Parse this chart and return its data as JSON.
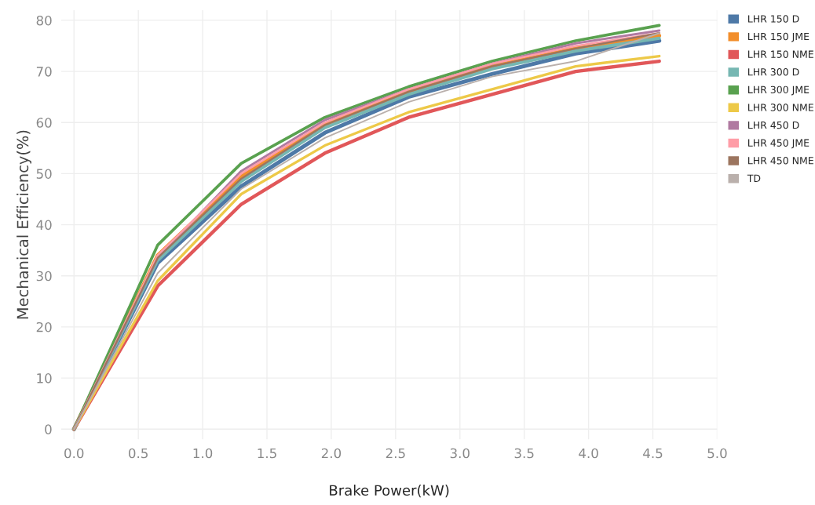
{
  "chart_data": {
    "type": "line",
    "xlabel": "Brake Power(kW)",
    "ylabel": "Mechanical Efficiency(%)",
    "x": [
      0,
      0.65,
      1.3,
      1.95,
      2.6,
      3.25,
      3.9,
      4.55
    ],
    "series": [
      {
        "name": "LHR 150 D",
        "color": "#4e79a7",
        "values": [
          0,
          32.5,
          47.5,
          58,
          65,
          69.5,
          73.5,
          76
        ]
      },
      {
        "name": "LHR 150 JME",
        "color": "#f28e2b",
        "values": [
          0,
          34,
          49.5,
          59.5,
          66,
          71,
          74.5,
          77
        ]
      },
      {
        "name": "LHR 150 NME",
        "color": "#e15759",
        "values": [
          0,
          28,
          44,
          54,
          61,
          65.5,
          70,
          72
        ]
      },
      {
        "name": "LHR 300 D",
        "color": "#76b7b2",
        "values": [
          0,
          33,
          48.5,
          59,
          65.5,
          70.5,
          74,
          76.5
        ]
      },
      {
        "name": "LHR 300 JME",
        "color": "#59a14f",
        "values": [
          0,
          36,
          52,
          61,
          67,
          72,
          76,
          79
        ]
      },
      {
        "name": "LHR 300 NME",
        "color": "#edc948",
        "values": [
          0,
          29,
          46,
          55.5,
          62,
          66.5,
          71,
          73
        ]
      },
      {
        "name": "LHR 450 D",
        "color": "#b07aa1",
        "values": [
          0,
          33.5,
          50.5,
          60.5,
          66.5,
          71.5,
          75.5,
          78
        ]
      },
      {
        "name": "LHR 450 JME",
        "color": "#ff9da7",
        "values": [
          0,
          34,
          50,
          60,
          66.5,
          71.5,
          75,
          77.5
        ]
      },
      {
        "name": "LHR 450 NME",
        "color": "#9c755f",
        "values": [
          0,
          33.5,
          49,
          59.5,
          66,
          71,
          74.5,
          77.5
        ]
      },
      {
        "name": "TD",
        "color": "#bab0ac",
        "values": [
          0,
          30.5,
          47,
          57,
          64,
          69,
          72,
          77.5
        ]
      }
    ],
    "xlim": [
      -0.1,
      5.0
    ],
    "xticks": [
      {
        "value": 0,
        "label": "0.0"
      },
      {
        "value": 0.5,
        "label": "0.5"
      },
      {
        "value": 1,
        "label": "1.0"
      },
      {
        "value": 1.5,
        "label": "1.5"
      },
      {
        "value": 2,
        "label": "2.0"
      },
      {
        "value": 2.5,
        "label": "2.5"
      },
      {
        "value": 3,
        "label": "3.0"
      },
      {
        "value": 3.5,
        "label": "3.5"
      },
      {
        "value": 4,
        "label": "4.0"
      },
      {
        "value": 4.5,
        "label": "4.5"
      },
      {
        "value": 5,
        "label": "5.0"
      }
    ],
    "ylim": [
      -2,
      82
    ],
    "yticks": [
      0,
      10,
      20,
      30,
      40,
      50,
      60,
      70,
      80
    ],
    "grid": true,
    "legend": "right",
    "marker": "none",
    "line_style": "solid"
  }
}
